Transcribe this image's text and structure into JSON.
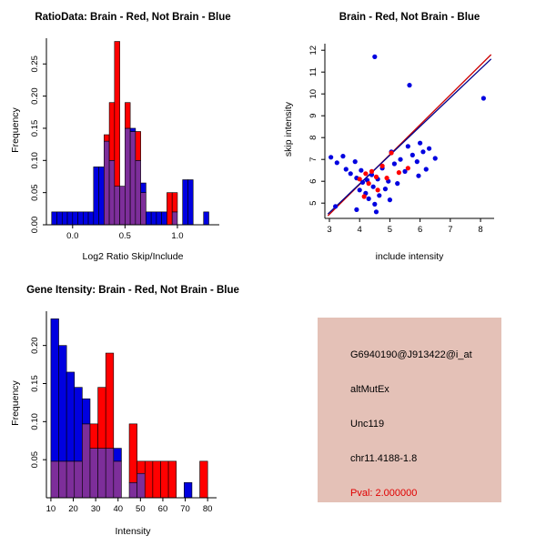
{
  "colors": {
    "blue": "#0000E0",
    "red": "#FF0000",
    "overlap": "#7D2E9A",
    "line_blue": "#00008B",
    "line_red": "#CC0000",
    "info_box_bg": "#E4C1B7",
    "pval_red": "#E00000"
  },
  "chart_data": [
    {
      "type": "bar",
      "title": "RatioData: Brain - Red, Not Brain - Blue",
      "xlabel": "Log2 Ratio Skip/Include",
      "ylabel": "Frequency",
      "xlim": [
        -0.25,
        1.4
      ],
      "ylim": [
        0,
        0.29
      ],
      "x_ticks": [
        0.0,
        0.5,
        1.0
      ],
      "x_tick_labels": [
        "0.0",
        "0.5",
        "1.0"
      ],
      "y_ticks": [
        0.0,
        0.05,
        0.1,
        0.15,
        0.2,
        0.25
      ],
      "y_tick_labels": [
        "0.00",
        "0.05",
        "0.10",
        "0.15",
        "0.20",
        "0.25"
      ],
      "bin_width": 0.05,
      "legend_note": "red = Brain, blue = Not Brain, purple = overlap",
      "bins": [
        {
          "x": -0.2,
          "blue": 0.02,
          "red": 0
        },
        {
          "x": -0.15,
          "blue": 0.02,
          "red": 0
        },
        {
          "x": -0.1,
          "blue": 0.02,
          "red": 0
        },
        {
          "x": -0.05,
          "blue": 0.02,
          "red": 0
        },
        {
          "x": 0.0,
          "blue": 0.02,
          "red": 0
        },
        {
          "x": 0.05,
          "blue": 0.02,
          "red": 0
        },
        {
          "x": 0.1,
          "blue": 0.02,
          "red": 0
        },
        {
          "x": 0.15,
          "blue": 0.02,
          "red": 0
        },
        {
          "x": 0.2,
          "blue": 0.09,
          "red": 0
        },
        {
          "x": 0.25,
          "blue": 0.09,
          "red": 0
        },
        {
          "x": 0.3,
          "blue": 0.13,
          "red": 0.14
        },
        {
          "x": 0.35,
          "blue": 0.1,
          "red": 0.19
        },
        {
          "x": 0.4,
          "blue": 0.06,
          "red": 0.285
        },
        {
          "x": 0.45,
          "blue": 0.06,
          "red": 0.06
        },
        {
          "x": 0.5,
          "blue": 0.15,
          "red": 0.19
        },
        {
          "x": 0.55,
          "blue": 0.15,
          "red": 0.145
        },
        {
          "x": 0.6,
          "blue": 0.1,
          "red": 0.145
        },
        {
          "x": 0.65,
          "blue": 0.065,
          "red": 0.05
        },
        {
          "x": 0.7,
          "blue": 0.02,
          "red": 0
        },
        {
          "x": 0.75,
          "blue": 0.02,
          "red": 0
        },
        {
          "x": 0.8,
          "blue": 0.02,
          "red": 0
        },
        {
          "x": 0.85,
          "blue": 0.02,
          "red": 0
        },
        {
          "x": 0.9,
          "blue": 0,
          "red": 0.05
        },
        {
          "x": 0.95,
          "blue": 0.02,
          "red": 0.05
        },
        {
          "x": 1.05,
          "blue": 0.07,
          "red": 0
        },
        {
          "x": 1.1,
          "blue": 0.07,
          "red": 0
        },
        {
          "x": 1.25,
          "blue": 0.02,
          "red": 0
        }
      ]
    },
    {
      "type": "scatter",
      "title": "Brain - Red, Not Brain - Blue",
      "xlabel": "include intensity",
      "ylabel": "skip intensity",
      "xlim": [
        2.85,
        8.45
      ],
      "ylim": [
        4.3,
        12.3
      ],
      "x_ticks": [
        3,
        4,
        5,
        6,
        7,
        8
      ],
      "x_tick_labels": [
        "3",
        "4",
        "5",
        "6",
        "7",
        "8"
      ],
      "y_ticks": [
        5,
        6,
        7,
        8,
        9,
        10,
        11,
        12
      ],
      "y_tick_labels": [
        "5",
        "6",
        "7",
        "8",
        "9",
        "10",
        "11",
        "12"
      ],
      "blue_points": [
        [
          4.5,
          11.7
        ],
        [
          5.65,
          10.4
        ],
        [
          8.1,
          9.8
        ],
        [
          3.05,
          7.1
        ],
        [
          3.25,
          6.85
        ],
        [
          3.45,
          7.15
        ],
        [
          3.55,
          6.55
        ],
        [
          3.7,
          6.35
        ],
        [
          3.85,
          6.9
        ],
        [
          3.9,
          6.15
        ],
        [
          4.0,
          5.6
        ],
        [
          4.05,
          6.5
        ],
        [
          4.1,
          5.95
        ],
        [
          4.2,
          5.45
        ],
        [
          4.25,
          6.05
        ],
        [
          4.3,
          5.2
        ],
        [
          4.4,
          6.3
        ],
        [
          4.45,
          5.75
        ],
        [
          4.5,
          4.95
        ],
        [
          4.6,
          6.1
        ],
        [
          4.65,
          5.35
        ],
        [
          4.75,
          6.6
        ],
        [
          4.85,
          5.65
        ],
        [
          4.95,
          6.0
        ],
        [
          5.05,
          7.35
        ],
        [
          5.15,
          6.8
        ],
        [
          5.25,
          5.9
        ],
        [
          5.35,
          7.0
        ],
        [
          5.5,
          6.45
        ],
        [
          5.6,
          7.6
        ],
        [
          5.75,
          7.2
        ],
        [
          5.9,
          6.9
        ],
        [
          6.0,
          7.75
        ],
        [
          6.1,
          7.35
        ],
        [
          6.3,
          7.5
        ],
        [
          6.5,
          7.05
        ],
        [
          3.2,
          4.85
        ],
        [
          3.9,
          4.7
        ],
        [
          4.55,
          4.6
        ],
        [
          5.0,
          5.15
        ],
        [
          5.95,
          6.25
        ],
        [
          6.2,
          6.55
        ]
      ],
      "red_points": [
        [
          4.0,
          6.1
        ],
        [
          4.2,
          6.35
        ],
        [
          4.3,
          5.9
        ],
        [
          4.4,
          6.45
        ],
        [
          4.55,
          6.2
        ],
        [
          4.6,
          5.6
        ],
        [
          4.75,
          6.7
        ],
        [
          4.9,
          6.15
        ],
        [
          5.05,
          7.3
        ],
        [
          5.3,
          6.4
        ],
        [
          5.6,
          6.6
        ],
        [
          4.15,
          5.3
        ]
      ],
      "lines": [
        {
          "color": "#CC0000",
          "x1": 2.95,
          "y1": 4.42,
          "x2": 8.35,
          "y2": 11.8
        },
        {
          "color": "#00008B",
          "x1": 2.95,
          "y1": 4.5,
          "x2": 8.35,
          "y2": 11.6
        }
      ]
    },
    {
      "type": "bar",
      "title": "Gene Itensity: Brain - Red, Not Brain - Blue",
      "xlabel": "Intensity",
      "ylabel": "Frequency",
      "xlim": [
        8,
        84
      ],
      "ylim": [
        0,
        0.245
      ],
      "x_ticks": [
        10,
        20,
        30,
        40,
        50,
        60,
        70,
        80
      ],
      "x_tick_labels": [
        "10",
        "20",
        "30",
        "40",
        "50",
        "60",
        "70",
        "80"
      ],
      "y_ticks": [
        0.05,
        0.1,
        0.15,
        0.2
      ],
      "y_tick_labels": [
        "0.05",
        "0.10",
        "0.15",
        "0.20"
      ],
      "bin_width": 3.5,
      "legend_note": "red = Brain, blue = Not Brain, purple = overlap",
      "bins": [
        {
          "x": 10.0,
          "blue": 0.235,
          "red": 0.048
        },
        {
          "x": 13.5,
          "blue": 0.2,
          "red": 0.048
        },
        {
          "x": 17.0,
          "blue": 0.165,
          "red": 0.048
        },
        {
          "x": 20.5,
          "blue": 0.145,
          "red": 0.048
        },
        {
          "x": 24.0,
          "blue": 0.13,
          "red": 0.097
        },
        {
          "x": 27.5,
          "blue": 0.065,
          "red": 0.097
        },
        {
          "x": 31.0,
          "blue": 0.065,
          "red": 0.145
        },
        {
          "x": 34.5,
          "blue": 0.065,
          "red": 0.19
        },
        {
          "x": 38.0,
          "blue": 0.065,
          "red": 0.048
        },
        {
          "x": 45.0,
          "blue": 0.02,
          "red": 0.097
        },
        {
          "x": 48.5,
          "blue": 0.032,
          "red": 0.048
        },
        {
          "x": 52.0,
          "blue": 0,
          "red": 0.048
        },
        {
          "x": 55.5,
          "blue": 0,
          "red": 0.048
        },
        {
          "x": 59.0,
          "blue": 0,
          "red": 0.048
        },
        {
          "x": 62.5,
          "blue": 0,
          "red": 0.048
        },
        {
          "x": 69.5,
          "blue": 0.02,
          "red": 0
        },
        {
          "x": 76.5,
          "blue": 0,
          "red": 0.048
        }
      ]
    }
  ],
  "info_panel": {
    "lines": [
      "G6940190@J913422@i_at",
      "altMutEx",
      "Unc119",
      "chr11.4188-1.8"
    ],
    "pval_line": "Pval: 2.000000"
  }
}
